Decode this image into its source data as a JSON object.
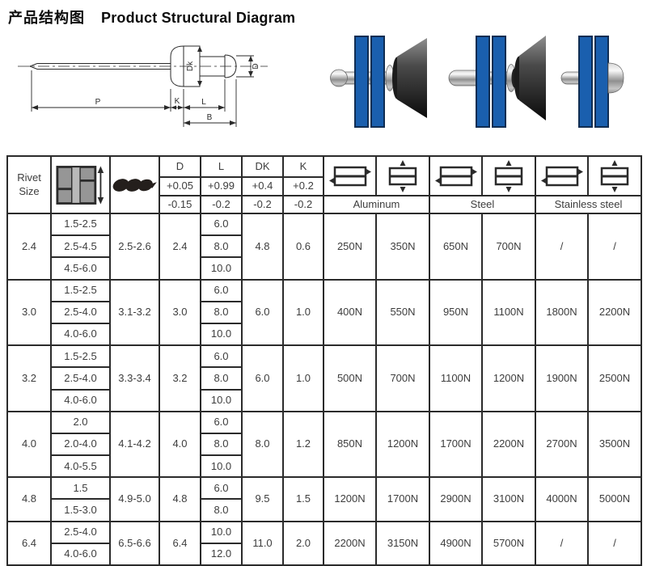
{
  "header": {
    "title_zh": "产品结构图",
    "title_en": "Product Structural Diagram"
  },
  "diagram": {
    "labels": {
      "p": "P",
      "k": "K",
      "l": "L",
      "b": "B",
      "dk": "Dk",
      "d": "D"
    }
  },
  "colors": {
    "plate_blue": "#1a5fae",
    "table_border": "#2b2b2b",
    "body_text": "#3d3d3d",
    "title_text": "#0d0d0d"
  },
  "table": {
    "header": {
      "rivet_size_label": "Rivet Size",
      "dims": [
        {
          "label": "D",
          "plus": "+0.05",
          "minus": "-0.15"
        },
        {
          "label": "L",
          "plus": "+0.99",
          "minus": "-0.2"
        },
        {
          "label": "DK",
          "plus": "+0.4",
          "minus": "-0.2"
        },
        {
          "label": "K",
          "plus": "+0.2",
          "minus": "-0.2"
        }
      ],
      "materials": [
        "Aluminum",
        "Steel",
        "Stainless steel"
      ]
    },
    "groups": [
      {
        "size": "2.4",
        "grips": [
          "1.5-2.5",
          "2.5-4.5",
          "4.5-6.0"
        ],
        "drill": "2.5-2.6",
        "d": "2.4",
        "lengths": [
          "6.0",
          "8.0",
          "10.0"
        ],
        "dk": "4.8",
        "k": "0.6",
        "strengths": [
          "250N",
          "350N",
          "650N",
          "700N",
          "/",
          "/"
        ]
      },
      {
        "size": "3.0",
        "grips": [
          "1.5-2.5",
          "2.5-4.0",
          "4.0-6.0"
        ],
        "drill": "3.1-3.2",
        "d": "3.0",
        "lengths": [
          "6.0",
          "8.0",
          "10.0"
        ],
        "dk": "6.0",
        "k": "1.0",
        "strengths": [
          "400N",
          "550N",
          "950N",
          "1100N",
          "1800N",
          "2200N"
        ]
      },
      {
        "size": "3.2",
        "grips": [
          "1.5-2.5",
          "2.5-4.0",
          "4.0-6.0"
        ],
        "drill": "3.3-3.4",
        "d": "3.2",
        "lengths": [
          "6.0",
          "8.0",
          "10.0"
        ],
        "dk": "6.0",
        "k": "1.0",
        "strengths": [
          "500N",
          "700N",
          "1100N",
          "1200N",
          "1900N",
          "2500N"
        ]
      },
      {
        "size": "4.0",
        "grips": [
          "2.0",
          "2.0-4.0",
          "4.0-5.5"
        ],
        "drill": "4.1-4.2",
        "d": "4.0",
        "lengths": [
          "6.0",
          "8.0",
          "10.0"
        ],
        "dk": "8.0",
        "k": "1.2",
        "strengths": [
          "850N",
          "1200N",
          "1700N",
          "2200N",
          "2700N",
          "3500N"
        ]
      },
      {
        "size": "4.8",
        "grips": [
          "1.5",
          "1.5-3.0"
        ],
        "drill": "4.9-5.0",
        "d": "4.8",
        "lengths": [
          "6.0",
          "8.0"
        ],
        "dk": "9.5",
        "k": "1.5",
        "strengths": [
          "1200N",
          "1700N",
          "2900N",
          "3100N",
          "4000N",
          "5000N"
        ]
      },
      {
        "size": "6.4",
        "grips": [
          "2.5-4.0",
          "4.0-6.0"
        ],
        "drill": "6.5-6.6",
        "d": "6.4",
        "lengths": [
          "10.0",
          "12.0"
        ],
        "dk": "11.0",
        "k": "2.0",
        "strengths": [
          "2200N",
          "3150N",
          "4900N",
          "5700N",
          "/",
          "/"
        ]
      }
    ]
  }
}
